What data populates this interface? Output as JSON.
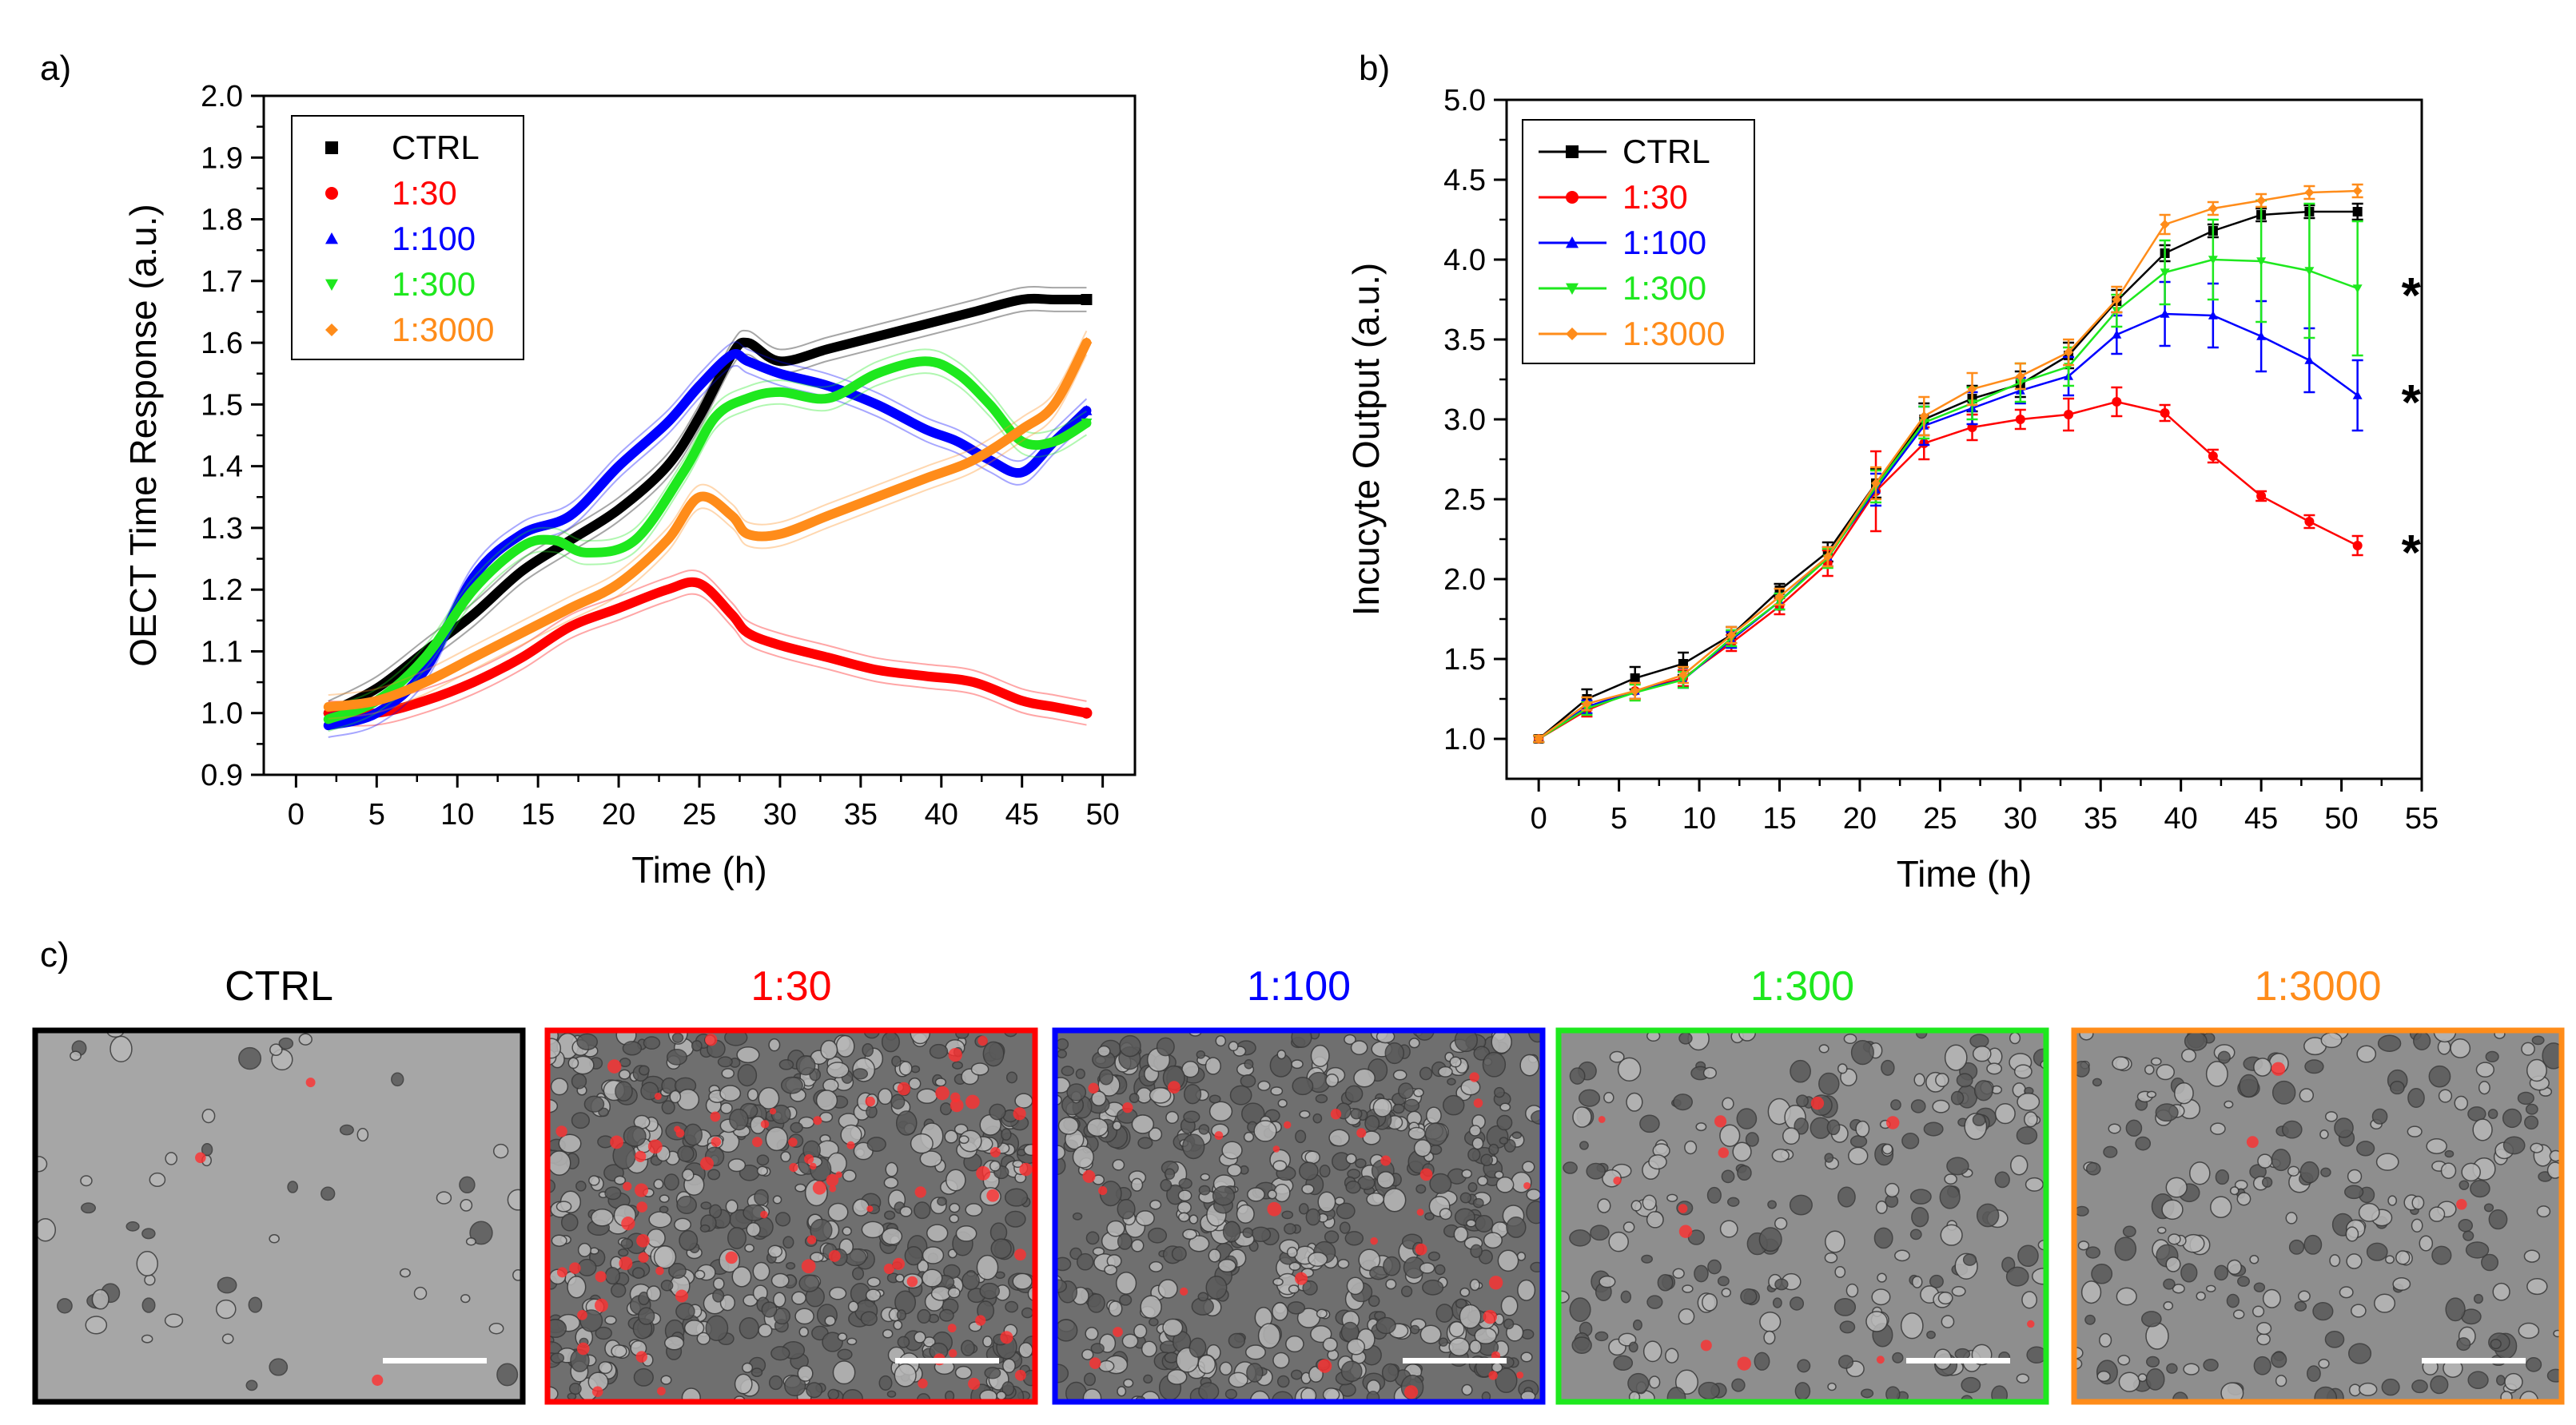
{
  "panels": {
    "a_label": "a)",
    "b_label": "b)",
    "c_label": "c)"
  },
  "chart_data": [
    {
      "type": "line",
      "panel": "a",
      "title": "",
      "xlabel": "Time (h)",
      "ylabel": "OECT Time Response (a.u.)",
      "xlim": [
        -2,
        52
      ],
      "ylim": [
        0.9,
        2.0
      ],
      "xticks": [
        "0",
        "5",
        "10",
        "15",
        "20",
        "25",
        "30",
        "35",
        "40",
        "45",
        "50"
      ],
      "yticks": [
        "0.9",
        "1.0",
        "1.1",
        "1.2",
        "1.3",
        "1.4",
        "1.5",
        "1.6",
        "1.7",
        "1.8",
        "1.9",
        "2.0"
      ],
      "legend_position": "top-left",
      "series": [
        {
          "name": "CTRL",
          "color": "#000000",
          "marker": "square",
          "x": [
            2,
            5,
            8,
            11,
            14,
            17,
            20,
            23,
            25,
            27,
            28,
            30,
            33,
            36,
            39,
            42,
            45,
            47,
            49
          ],
          "y": [
            1.0,
            1.04,
            1.1,
            1.16,
            1.23,
            1.28,
            1.33,
            1.4,
            1.48,
            1.58,
            1.6,
            1.57,
            1.59,
            1.61,
            1.63,
            1.65,
            1.67,
            1.67,
            1.67
          ]
        },
        {
          "name": "1:30",
          "color": "#ff0000",
          "marker": "circle",
          "x": [
            2,
            5,
            8,
            11,
            14,
            17,
            20,
            23,
            25,
            27,
            28,
            30,
            33,
            36,
            39,
            42,
            45,
            47,
            49
          ],
          "y": [
            1.0,
            1.0,
            1.02,
            1.05,
            1.09,
            1.14,
            1.17,
            1.2,
            1.21,
            1.16,
            1.13,
            1.11,
            1.09,
            1.07,
            1.06,
            1.05,
            1.02,
            1.01,
            1.0
          ]
        },
        {
          "name": "1:100",
          "color": "#0000ff",
          "marker": "triangle",
          "x": [
            2,
            5,
            8,
            11,
            14,
            17,
            20,
            23,
            25,
            27,
            28,
            30,
            33,
            36,
            39,
            41,
            43,
            45,
            47,
            49
          ],
          "y": [
            0.98,
            1.0,
            1.07,
            1.22,
            1.29,
            1.32,
            1.4,
            1.47,
            1.53,
            1.58,
            1.57,
            1.55,
            1.53,
            1.5,
            1.46,
            1.44,
            1.41,
            1.39,
            1.44,
            1.49
          ]
        },
        {
          "name": "1:300",
          "color": "#1ee81e",
          "marker": "triangle-down",
          "x": [
            2,
            5,
            8,
            11,
            14,
            16,
            18,
            21,
            24,
            26,
            28,
            30,
            33,
            36,
            39,
            41,
            43,
            45,
            47,
            49
          ],
          "y": [
            0.99,
            1.02,
            1.09,
            1.2,
            1.27,
            1.28,
            1.26,
            1.28,
            1.39,
            1.48,
            1.51,
            1.52,
            1.51,
            1.55,
            1.57,
            1.55,
            1.5,
            1.44,
            1.44,
            1.47
          ]
        },
        {
          "name": "1:3000",
          "color": "#ff8c1a",
          "marker": "diamond",
          "x": [
            2,
            5,
            8,
            11,
            14,
            17,
            20,
            23,
            25,
            27,
            28,
            30,
            33,
            36,
            39,
            42,
            45,
            47,
            49
          ],
          "y": [
            1.01,
            1.02,
            1.05,
            1.09,
            1.13,
            1.17,
            1.21,
            1.28,
            1.35,
            1.32,
            1.29,
            1.29,
            1.32,
            1.35,
            1.38,
            1.41,
            1.46,
            1.5,
            1.6
          ]
        }
      ]
    },
    {
      "type": "line",
      "panel": "b",
      "title": "",
      "xlabel": "Time (h)",
      "ylabel": "Incucyte Output (a.u.)",
      "xlim": [
        -2,
        55
      ],
      "ylim": [
        0.75,
        5.0
      ],
      "xticks": [
        "0",
        "5",
        "10",
        "15",
        "20",
        "25",
        "30",
        "35",
        "40",
        "45",
        "50",
        "55"
      ],
      "yticks": [
        "1.0",
        "1.5",
        "2.0",
        "2.5",
        "3.0",
        "3.5",
        "4.0",
        "4.5",
        "5.0"
      ],
      "legend_position": "top-left",
      "significance_marks": [
        "*",
        "*",
        "*"
      ],
      "x": [
        0,
        3,
        6,
        9,
        12,
        15,
        18,
        21,
        24,
        27,
        30,
        33,
        36,
        39,
        42,
        45,
        48,
        51
      ],
      "series": [
        {
          "name": "CTRL",
          "color": "#000000",
          "marker": "square",
          "y": [
            1.0,
            1.25,
            1.38,
            1.47,
            1.65,
            1.93,
            2.17,
            2.6,
            3.0,
            3.13,
            3.22,
            3.4,
            3.74,
            4.04,
            4.18,
            4.28,
            4.3,
            4.3
          ],
          "err": [
            0.02,
            0.06,
            0.07,
            0.07,
            0.05,
            0.04,
            0.06,
            0.09,
            0.1,
            0.08,
            0.08,
            0.08,
            0.07,
            0.05,
            0.04,
            0.04,
            0.04,
            0.05
          ]
        },
        {
          "name": "1:30",
          "color": "#ff0000",
          "marker": "circle",
          "y": [
            1.0,
            1.18,
            1.3,
            1.38,
            1.6,
            1.83,
            2.1,
            2.55,
            2.85,
            2.95,
            3.0,
            3.03,
            3.11,
            3.04,
            2.77,
            2.52,
            2.36,
            2.21
          ],
          "err": [
            0.02,
            0.04,
            0.05,
            0.05,
            0.05,
            0.05,
            0.08,
            0.25,
            0.1,
            0.08,
            0.06,
            0.1,
            0.09,
            0.05,
            0.04,
            0.03,
            0.04,
            0.06
          ]
        },
        {
          "name": "1:100",
          "color": "#0000ff",
          "marker": "triangle",
          "y": [
            1.0,
            1.2,
            1.3,
            1.37,
            1.62,
            1.86,
            2.14,
            2.56,
            2.96,
            3.07,
            3.18,
            3.27,
            3.53,
            3.66,
            3.65,
            3.52,
            3.37,
            3.15
          ],
          "err": [
            0.02,
            0.04,
            0.05,
            0.05,
            0.05,
            0.05,
            0.06,
            0.1,
            0.12,
            0.1,
            0.08,
            0.12,
            0.12,
            0.2,
            0.2,
            0.22,
            0.2,
            0.22
          ]
        },
        {
          "name": "1:300",
          "color": "#1ee81e",
          "marker": "triangle-down",
          "y": [
            1.0,
            1.19,
            1.29,
            1.37,
            1.63,
            1.86,
            2.13,
            2.58,
            2.98,
            3.1,
            3.23,
            3.33,
            3.68,
            3.92,
            4.0,
            3.99,
            3.93,
            3.82
          ],
          "err": [
            0.02,
            0.04,
            0.05,
            0.05,
            0.05,
            0.05,
            0.06,
            0.1,
            0.1,
            0.1,
            0.12,
            0.12,
            0.1,
            0.2,
            0.25,
            0.38,
            0.42,
            0.42
          ]
        },
        {
          "name": "1:3000",
          "color": "#ff8c1a",
          "marker": "diamond",
          "y": [
            1.0,
            1.22,
            1.3,
            1.4,
            1.65,
            1.89,
            2.14,
            2.6,
            3.02,
            3.19,
            3.27,
            3.42,
            3.75,
            4.22,
            4.32,
            4.37,
            4.42,
            4.43
          ],
          "err": [
            0.02,
            0.04,
            0.05,
            0.05,
            0.05,
            0.05,
            0.06,
            0.1,
            0.12,
            0.1,
            0.08,
            0.08,
            0.08,
            0.06,
            0.04,
            0.04,
            0.04,
            0.04
          ]
        }
      ]
    }
  ],
  "images": [
    {
      "label": "CTRL",
      "color": "#000000",
      "density": "sparse",
      "red_cells": "few"
    },
    {
      "label": "1:30",
      "color": "#ff0000",
      "density": "dense",
      "red_cells": "many"
    },
    {
      "label": "1:100",
      "color": "#0000ff",
      "density": "dense",
      "red_cells": "moderate"
    },
    {
      "label": "1:300",
      "color": "#1ee81e",
      "density": "moderate",
      "red_cells": "some"
    },
    {
      "label": "1:3000",
      "color": "#ff8c1a",
      "density": "moderate",
      "red_cells": "few"
    }
  ]
}
